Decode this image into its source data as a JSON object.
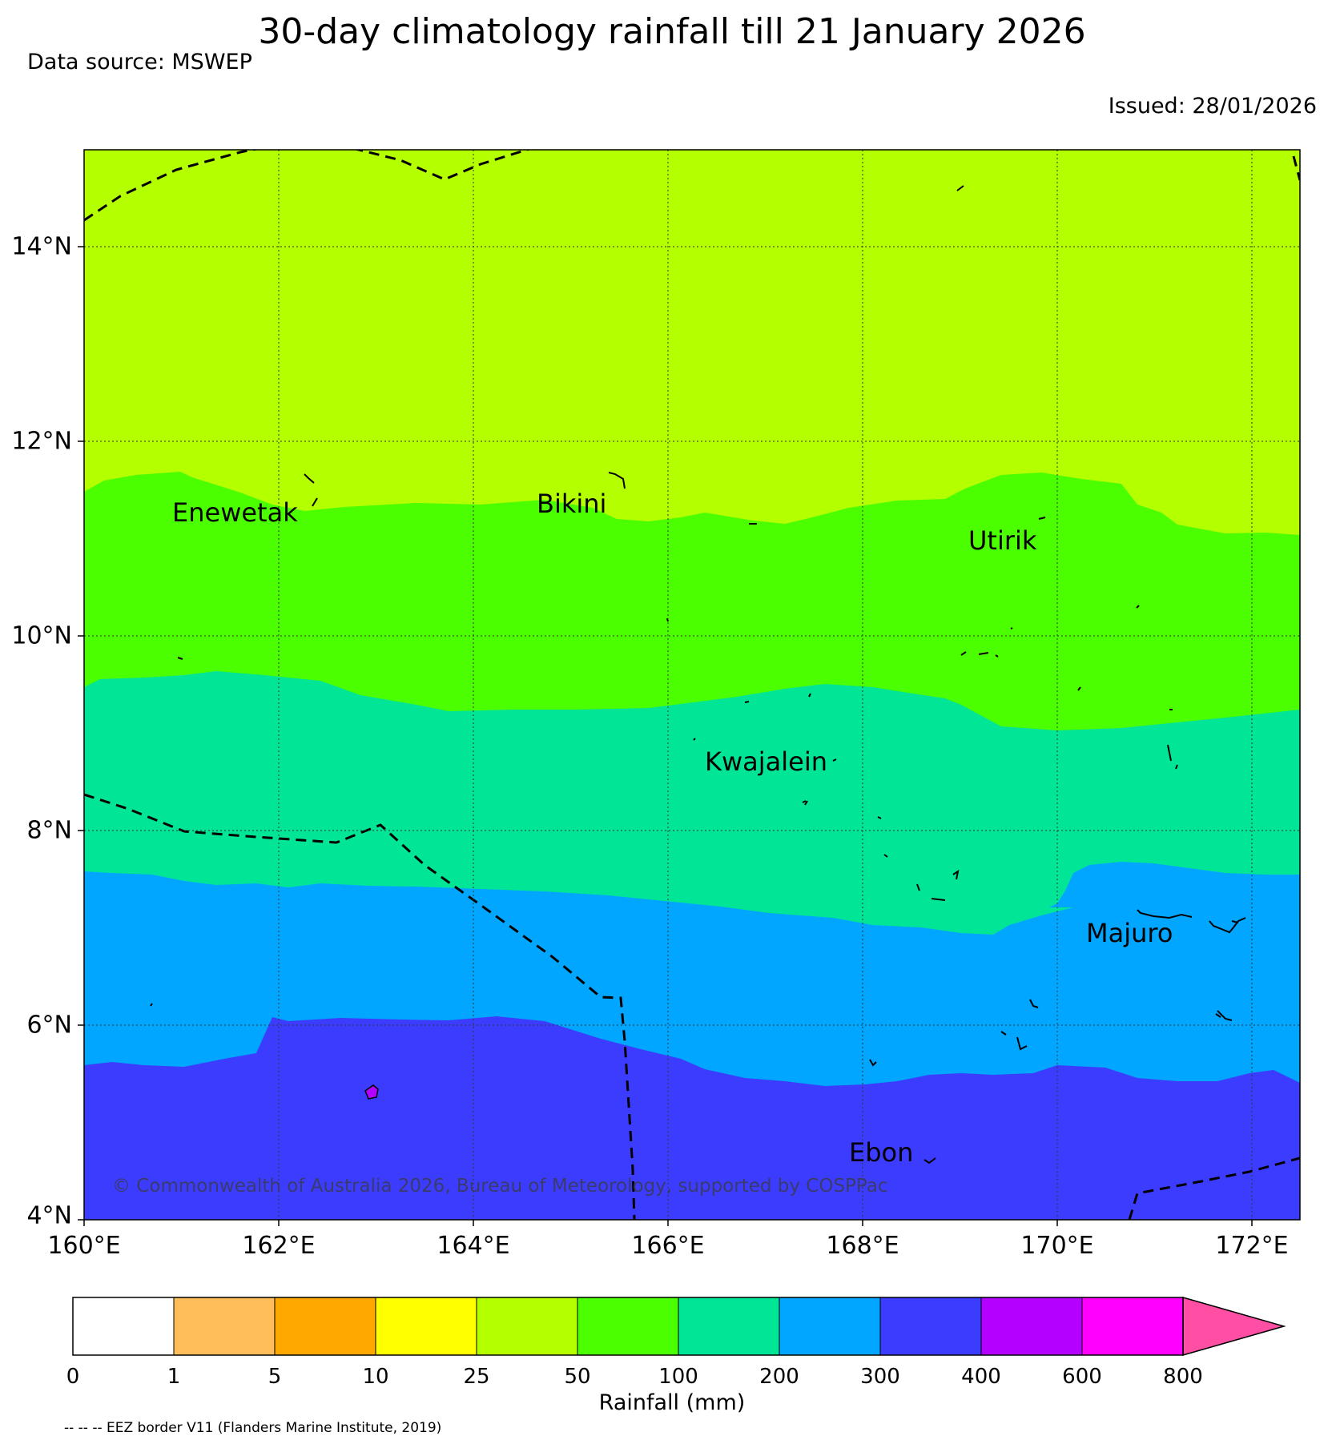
{
  "title": "30-day climatology rainfall till 21 January 2026",
  "source": "Data source: MSWEP",
  "issued": "Issued: 28/01/2026",
  "map": {
    "lat_range": [
      4,
      15
    ],
    "lon_range": [
      160,
      172.5
    ],
    "lat_ticks": [
      "14°N",
      "12°N",
      "10°N",
      "8°N",
      "6°N",
      "4°N"
    ],
    "lon_ticks": [
      "160°E",
      "162°E",
      "164°E",
      "166°E",
      "168°E",
      "170°E",
      "172°E"
    ],
    "gridlines": "dotted",
    "places": [
      {
        "name": "Enewetak",
        "lon": 162.0,
        "lat": 11.2
      },
      {
        "name": "Bikini",
        "lon": 165.1,
        "lat": 11.3
      },
      {
        "name": "Utirik",
        "lon": 169.5,
        "lat": 10.9
      },
      {
        "name": "Kwajalein",
        "lon": 167.0,
        "lat": 8.7
      },
      {
        "name": "Majuro",
        "lon": 170.8,
        "lat": 6.9
      },
      {
        "name": "Ebon",
        "lon": 168.2,
        "lat": 4.6
      }
    ],
    "copyright": "© Commonwealth of Australia 2026, Bureau of Meteorology, supported by COSPPac"
  },
  "colorbar": {
    "label": "Rainfall (mm)",
    "ticks": [
      "0",
      "1",
      "5",
      "10",
      "25",
      "50",
      "100",
      "200",
      "300",
      "400",
      "600",
      "800"
    ],
    "colors": [
      "#ffffff",
      "#ffbe5a",
      "#ffa800",
      "#ffff00",
      "#b4ff00",
      "#4bff00",
      "#00e696",
      "#00a6ff",
      "#3c3cff",
      "#b400ff",
      "#ff00ff",
      "#ff4fa5"
    ]
  },
  "footnote": "-- -- -- EEZ border V11 (Flanders Marine Institute, 2019)"
}
